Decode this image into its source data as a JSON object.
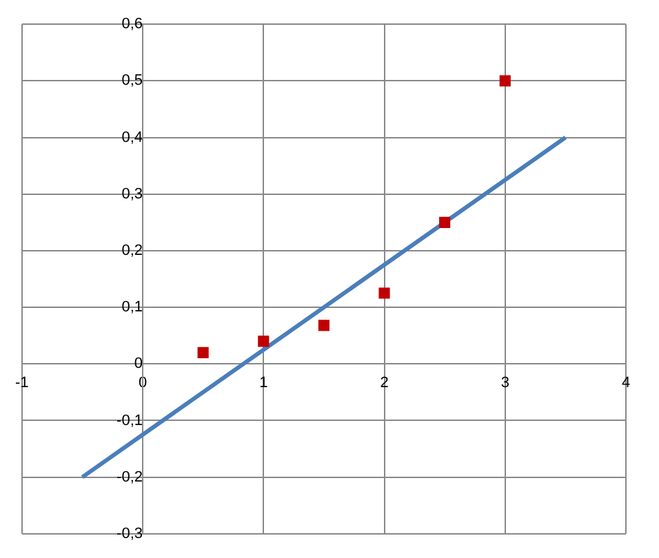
{
  "chart_data": {
    "type": "scatter",
    "series": [
      {
        "type": "scatter",
        "color": "#c00000",
        "marker": "square",
        "x": [
          0.5,
          1,
          1.5,
          2,
          2.5,
          3
        ],
        "values": [
          0.02,
          0.04,
          0.068,
          0.125,
          0.25,
          0.5
        ]
      },
      {
        "type": "line",
        "color": "#4a7ebb",
        "marker": "none",
        "line_style": "solid",
        "x": [
          -0.5,
          3.5
        ],
        "values": [
          -0.2,
          0.4
        ]
      }
    ],
    "xlim": [
      -1,
      4
    ],
    "xticks": [
      -1,
      0,
      1,
      2,
      3,
      4
    ],
    "ylim": [
      -0.3,
      0.6
    ],
    "yticks": [
      {
        "value": -0.3,
        "label": "-0,3"
      },
      {
        "value": -0.2,
        "label": "-0,2"
      },
      {
        "value": -0.1,
        "label": "-0,1"
      },
      {
        "value": 0,
        "label": "0"
      },
      {
        "value": 0.1,
        "label": "0,1"
      },
      {
        "value": 0.2,
        "label": "0,2"
      },
      {
        "value": 0.3,
        "label": "0,3"
      },
      {
        "value": 0.4,
        "label": "0,4"
      },
      {
        "value": 0.5,
        "label": "0,5"
      },
      {
        "value": 0.6,
        "label": "0,6"
      }
    ],
    "grid": true,
    "legend": false
  }
}
